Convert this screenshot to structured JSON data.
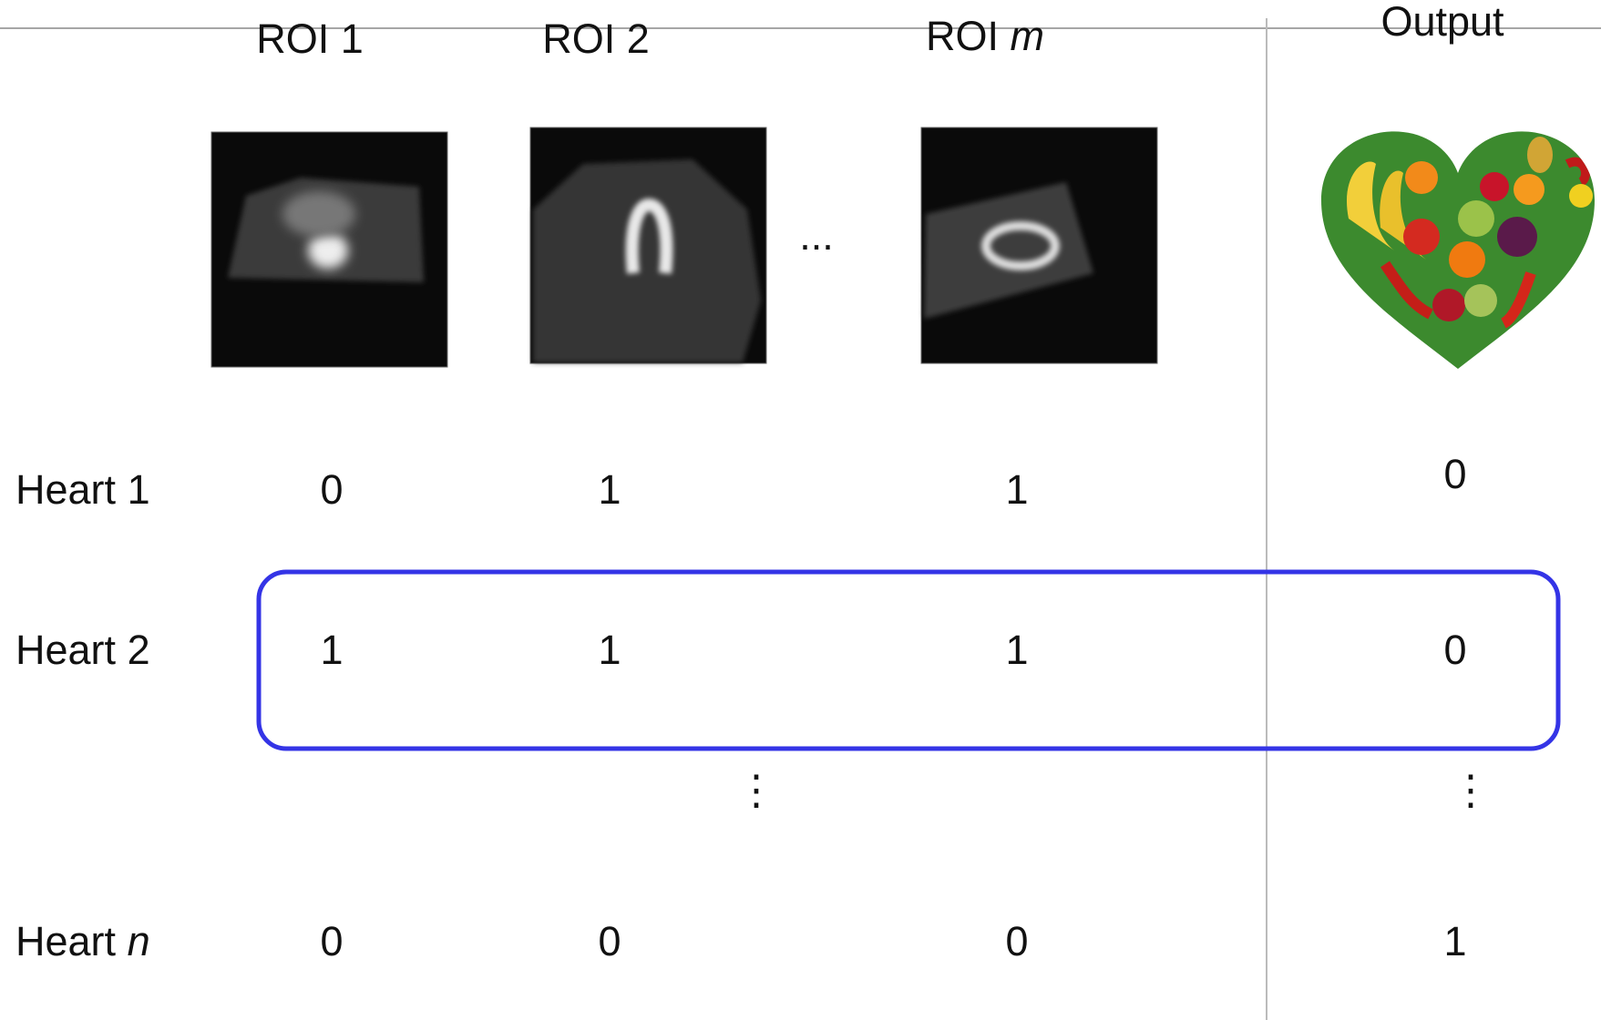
{
  "columns": [
    {
      "label": "ROI 1"
    },
    {
      "label": "ROI 2"
    },
    {
      "prefix": "ROI",
      "var": "m"
    },
    {
      "label": "Output"
    }
  ],
  "column_ellipsis": "...",
  "rows": [
    {
      "prefix": "Heart",
      "index": "1",
      "values": [
        "0",
        "1",
        "1"
      ],
      "output": "0"
    },
    {
      "prefix": "Heart",
      "index": "2",
      "values": [
        "1",
        "1",
        "1"
      ],
      "output": "0"
    },
    {
      "prefix": "Heart",
      "var": "n",
      "values": [
        "0",
        "0",
        "0"
      ],
      "output": "1"
    }
  ],
  "row_ellipsis": "⋮"
}
